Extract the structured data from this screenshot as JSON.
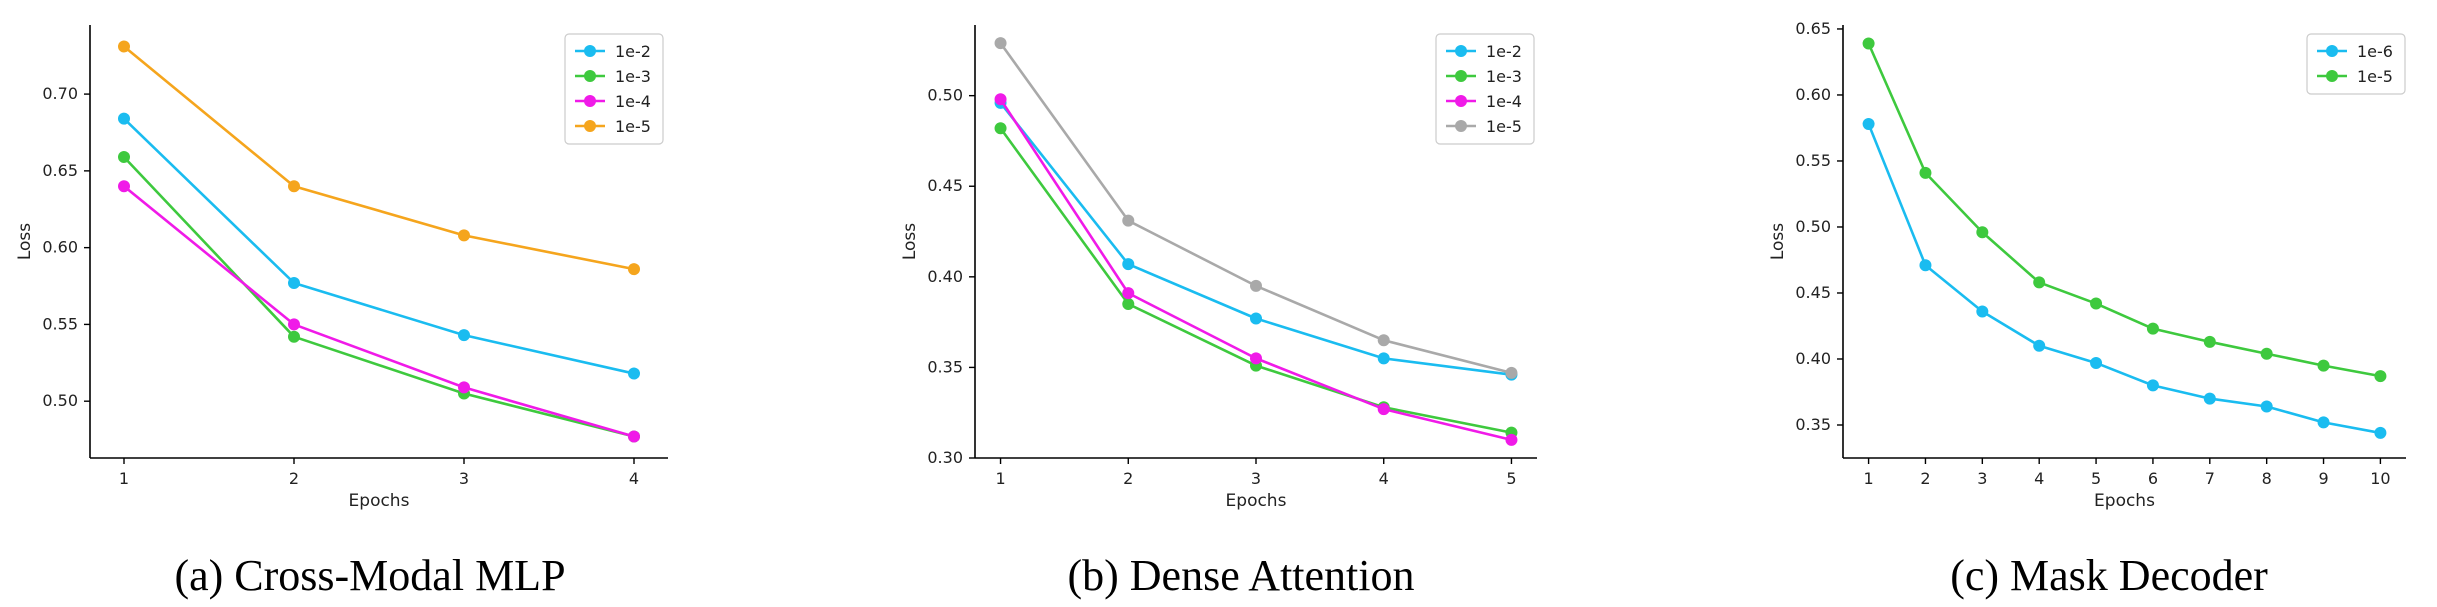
{
  "chart_data": [
    {
      "type": "line",
      "caption": "(a) Cross-Modal MLP",
      "xlabel": "Epochs",
      "ylabel": "Loss",
      "x": [
        1,
        2,
        3,
        4
      ],
      "xlim": [
        0.8,
        4.2
      ],
      "ylim": [
        0.463,
        0.745
      ],
      "yticks": [
        0.5,
        0.55,
        0.6,
        0.65,
        0.7
      ],
      "ytick_labels": [
        "0.50",
        "0.55",
        "0.60",
        "0.65",
        "0.70"
      ],
      "xtick_labels": [
        "1",
        "2",
        "3",
        "4"
      ],
      "grid": false,
      "legend": "top-right",
      "series": [
        {
          "name": "1e-2",
          "color": "#1ABCF0",
          "values": [
            0.684,
            0.577,
            0.543,
            0.518
          ]
        },
        {
          "name": "1e-3",
          "color": "#3EC93E",
          "values": [
            0.659,
            0.542,
            0.505,
            0.477
          ]
        },
        {
          "name": "1e-4",
          "color": "#F01AE8",
          "values": [
            0.64,
            0.55,
            0.509,
            0.477
          ]
        },
        {
          "name": "1e-5",
          "color": "#F5A51D",
          "values": [
            0.731,
            0.64,
            0.608,
            0.586
          ]
        }
      ]
    },
    {
      "type": "line",
      "caption": "(b) Dense Attention",
      "xlabel": "Epochs",
      "ylabel": "Loss",
      "x": [
        1,
        2,
        3,
        4,
        5
      ],
      "xlim": [
        0.8,
        5.2
      ],
      "ylim": [
        0.3,
        0.539
      ],
      "yticks": [
        0.3,
        0.35,
        0.4,
        0.45,
        0.5
      ],
      "ytick_labels": [
        "0.30",
        "0.35",
        "0.40",
        "0.45",
        "0.50"
      ],
      "xtick_labels": [
        "1",
        "2",
        "3",
        "4",
        "5"
      ],
      "grid": false,
      "legend": "top-right",
      "series": [
        {
          "name": "1e-2",
          "color": "#1ABCF0",
          "values": [
            0.496,
            0.407,
            0.377,
            0.355,
            0.346
          ]
        },
        {
          "name": "1e-3",
          "color": "#3EC93E",
          "values": [
            0.482,
            0.385,
            0.351,
            0.328,
            0.314
          ]
        },
        {
          "name": "1e-4",
          "color": "#F01AE8",
          "values": [
            0.498,
            0.391,
            0.355,
            0.327,
            0.31
          ]
        },
        {
          "name": "1e-5",
          "color": "#A9A9A9",
          "values": [
            0.529,
            0.431,
            0.395,
            0.365,
            0.347
          ]
        }
      ]
    },
    {
      "type": "line",
      "caption": "(c) Mask Decoder",
      "xlabel": "Epochs",
      "ylabel": "Loss",
      "x": [
        1,
        2,
        3,
        4,
        5,
        6,
        7,
        8,
        9,
        10
      ],
      "xlim": [
        0.55,
        10.45
      ],
      "ylim": [
        0.325,
        0.653
      ],
      "yticks": [
        0.35,
        0.4,
        0.45,
        0.5,
        0.55,
        0.6,
        0.65
      ],
      "ytick_labels": [
        "0.35",
        "0.40",
        "0.45",
        "0.50",
        "0.55",
        "0.60",
        "0.65"
      ],
      "xtick_labels": [
        "1",
        "2",
        "3",
        "4",
        "5",
        "6",
        "7",
        "8",
        "9",
        "10"
      ],
      "grid": false,
      "legend": "top-right",
      "series": [
        {
          "name": "1e-6",
          "color": "#1ABCF0",
          "values": [
            0.578,
            0.471,
            0.436,
            0.41,
            0.397,
            0.38,
            0.37,
            0.364,
            0.352,
            0.344
          ]
        },
        {
          "name": "1e-5",
          "color": "#3EC93E",
          "values": [
            0.639,
            0.541,
            0.496,
            0.458,
            0.442,
            0.423,
            0.413,
            0.404,
            0.395,
            0.387
          ]
        }
      ]
    }
  ]
}
